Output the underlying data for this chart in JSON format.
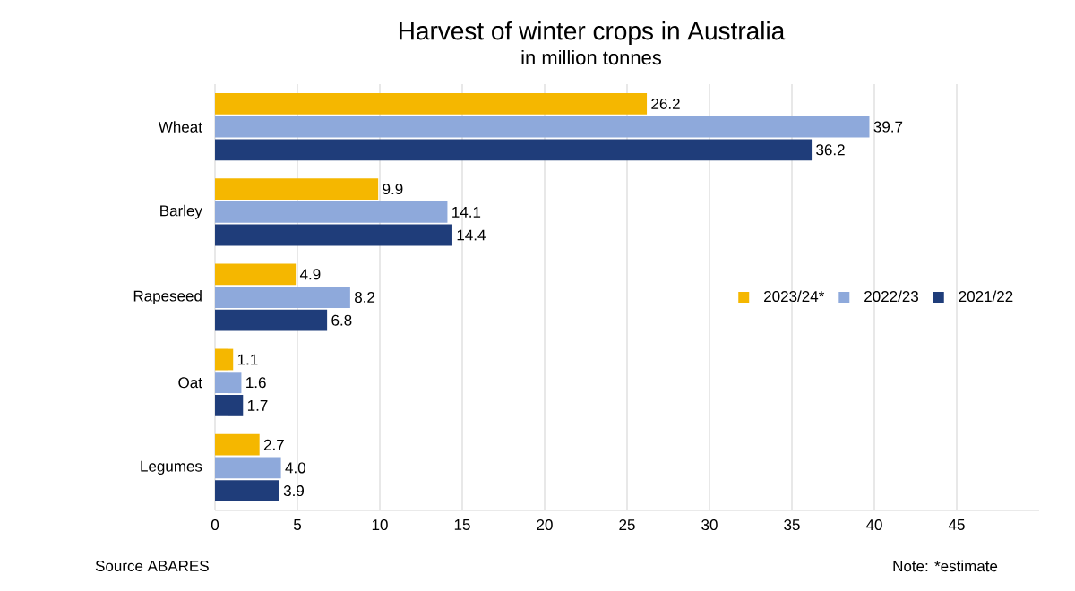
{
  "chart_data": {
    "type": "bar",
    "orientation": "horizontal",
    "title": "Harvest of winter crops in Australia",
    "subtitle": "in million tonnes",
    "categories": [
      "Wheat",
      "Barley",
      "Rapeseed",
      "Oat",
      "Legumes"
    ],
    "series": [
      {
        "name": "2023/24*",
        "color": "#f5b700",
        "values": [
          26.2,
          9.9,
          4.9,
          1.1,
          2.7
        ],
        "value_labels": [
          "26.2",
          "9.9",
          "4.9",
          "1.1",
          "2.7"
        ]
      },
      {
        "name": "2022/23",
        "color": "#8ea9db",
        "values": [
          39.7,
          14.1,
          8.2,
          1.6,
          4.0
        ],
        "value_labels": [
          "39.7",
          "14.1",
          "8.2",
          "1.6",
          "4.0"
        ]
      },
      {
        "name": "2021/22",
        "color": "#1f3d7a",
        "values": [
          36.2,
          14.4,
          6.8,
          1.7,
          3.9
        ],
        "value_labels": [
          "36.2",
          "14.4",
          "6.8",
          "1.7",
          "3.9"
        ]
      }
    ],
    "xlim": [
      0,
      50
    ],
    "xticks": [
      0,
      5,
      10,
      15,
      20,
      25,
      30,
      35,
      40,
      45
    ],
    "grid": "x",
    "legend": "right",
    "annotations": [
      "Source  ABARES",
      "Note: *estimate"
    ]
  }
}
